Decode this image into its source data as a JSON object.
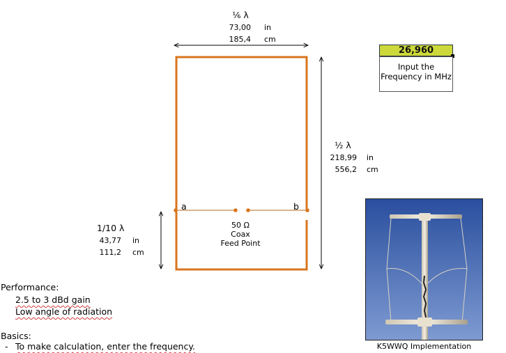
{
  "top_dimension": {
    "fraction": "⅙ λ",
    "in_value": "73,00",
    "in_unit": "in",
    "cm_value": "185,4",
    "cm_unit": "cm"
  },
  "right_dimension": {
    "fraction": "½ λ",
    "in_value": "218,99",
    "in_unit": "in",
    "cm_value": "556,2",
    "cm_unit": "cm"
  },
  "left_dimension": {
    "fraction": "1/10 λ",
    "in_value": "43,77",
    "in_unit": "in",
    "cm_value": "111,2",
    "cm_unit": "cm"
  },
  "frequency": {
    "value": "26,960",
    "note": "Input the Frequency in MHz"
  },
  "feed": {
    "label_a": "a",
    "label_b": "b",
    "impedance": "50 Ω",
    "line2": "Coax",
    "line3": "Feed Point"
  },
  "performance": {
    "heading": "Performance:",
    "items": [
      "2.5 to 3 dBd gain",
      "Low angle of radiation"
    ]
  },
  "basics": {
    "heading": "Basics:",
    "bullet": "-",
    "item": "To make calculation, enter the frequency."
  },
  "photo": {
    "caption": "K5WWQ Implementation"
  },
  "colors": {
    "antenna": "#d8761e",
    "frequency_cell": "#cdd93a",
    "sky": "#5d7ec3"
  }
}
